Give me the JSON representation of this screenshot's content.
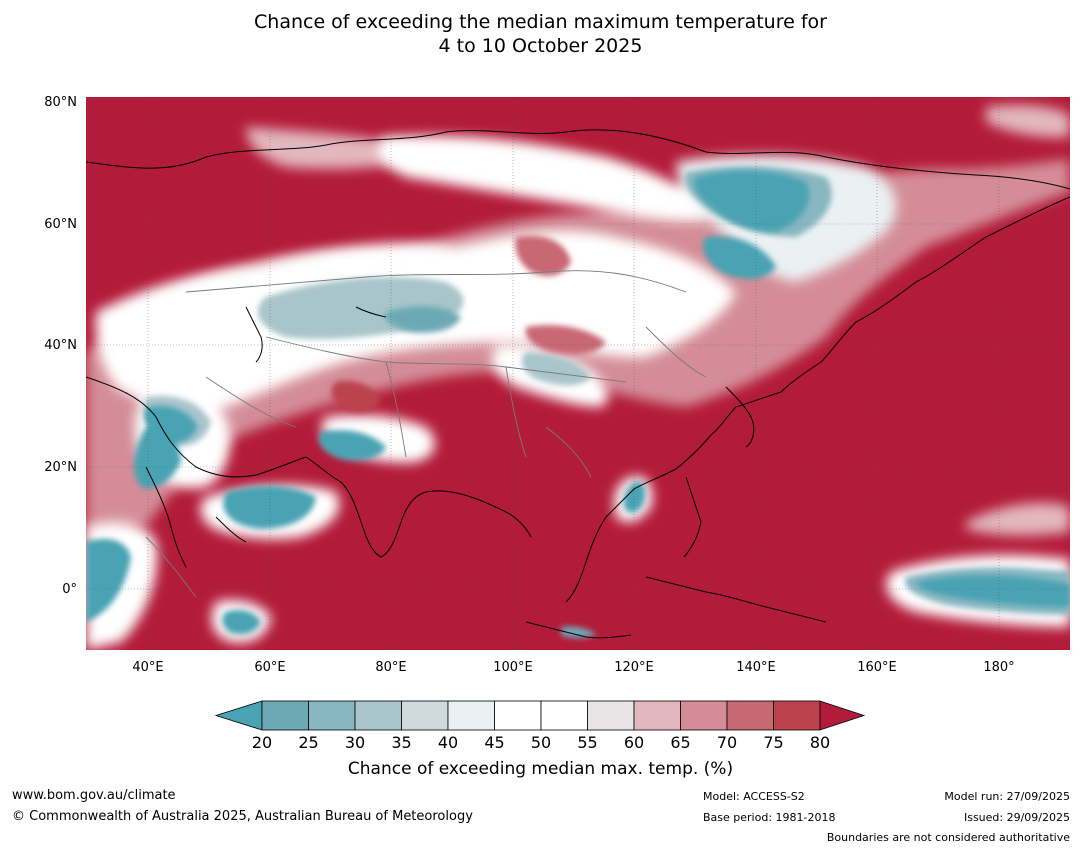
{
  "title": {
    "line1": "Chance of exceeding the median maximum temperature for",
    "line2": "4 to 10 October 2025"
  },
  "map": {
    "lat_labels": [
      "80°N",
      "60°N",
      "40°N",
      "20°N",
      "0°"
    ],
    "lon_labels": [
      "40°E",
      "60°E",
      "80°E",
      "100°E",
      "120°E",
      "140°E",
      "160°E",
      "180°"
    ],
    "colors": {
      "high": "#b31b3a",
      "low": "#4aa3b2",
      "neutral": "#ffffff",
      "coast": "#000000",
      "border": "#808080"
    }
  },
  "colorbar": {
    "ticks": [
      "20",
      "25",
      "30",
      "35",
      "40",
      "45",
      "50",
      "55",
      "60",
      "65",
      "70",
      "75",
      "80"
    ],
    "colors": [
      "#4aa3b2",
      "#6da9b5",
      "#88b7c1",
      "#a9c5cb",
      "#d0dadc",
      "#eaf1f3",
      "#ffffff",
      "#ffffff",
      "#e9e5e6",
      "#e2b7bd",
      "#d48d97",
      "#c86873",
      "#bc424f",
      "#b31b3a"
    ],
    "label": "Chance of exceeding median max. temp. (%)"
  },
  "footer": {
    "website": "www.bom.gov.au/climate",
    "copyright": "© Commonwealth of Australia 2025, Australian Bureau of Meteorology",
    "model": "Model: ACCESS-S2",
    "base_period": "Base period: 1981-2018",
    "model_run": "Model run: 27/09/2025",
    "issued": "Issued: 29/09/2025",
    "disclaimer": "Boundaries are not considered authoritative"
  }
}
